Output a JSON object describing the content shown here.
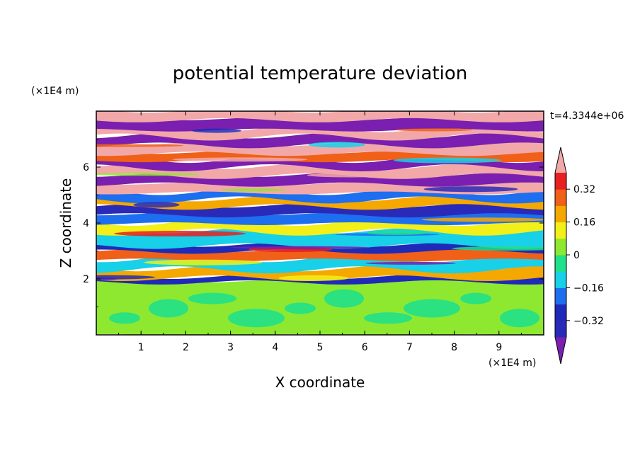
{
  "chart_data": {
    "type": "heatmap",
    "title": "potential temperature deviation",
    "xlabel": "X coordinate",
    "ylabel": "Z coordinate",
    "x_unit": "(×1E4 m)",
    "y_unit": "(×1E4 m)",
    "time_label": "t=4.3344e+06",
    "x_ticks": [
      "1",
      "2",
      "3",
      "4",
      "5",
      "6",
      "7",
      "8",
      "9"
    ],
    "y_ticks": [
      "2",
      "4",
      "6"
    ],
    "xlim": [
      0,
      10
    ],
    "ylim": [
      0,
      8
    ],
    "colorbar": {
      "tick_labels": [
        "0.32",
        "0.16",
        "0",
        "−0.16",
        "−0.32"
      ],
      "tick_values": [
        0.32,
        0.16,
        0,
        -0.16,
        -0.32
      ],
      "levels": [
        -0.4,
        -0.32,
        -0.24,
        -0.16,
        -0.08,
        0,
        0.08,
        0.16,
        0.24,
        0.32,
        0.4
      ],
      "colors": [
        "#7a1fb0",
        "#2a2ab8",
        "#1f2ab8",
        "#1e6ef0",
        "#18d0e8",
        "#20e08a",
        "#8ee830",
        "#f2f018",
        "#f4a800",
        "#f06018",
        "#e82020",
        "#f2a8a8"
      ],
      "extend": "both"
    },
    "bands": [
      {
        "z": [
          0.0,
          1.9
        ],
        "color": "#8ee830"
      },
      {
        "z": [
          1.9,
          2.05
        ],
        "color": "#1f2ab8"
      },
      {
        "z": [
          2.05,
          2.35
        ],
        "color": "#f4a800"
      },
      {
        "z": [
          2.35,
          2.7
        ],
        "color": "#18d0e8"
      },
      {
        "z": [
          2.7,
          3.0
        ],
        "color": "#f06018"
      },
      {
        "z": [
          3.0,
          3.2
        ],
        "color": "#1f2ab8"
      },
      {
        "z": [
          3.2,
          3.7
        ],
        "color": "#18d0e8"
      },
      {
        "z": [
          3.7,
          4.0
        ],
        "color": "#f2f018"
      },
      {
        "z": [
          4.0,
          4.3
        ],
        "color": "#1e6ef0"
      },
      {
        "z": [
          4.3,
          4.6
        ],
        "color": "#2a2ab8"
      },
      {
        "z": [
          4.6,
          4.85
        ],
        "color": "#f4a800"
      },
      {
        "z": [
          4.85,
          5.1
        ],
        "color": "#1e6ef0"
      },
      {
        "z": [
          5.1,
          5.4
        ],
        "color": "#f2a8a8"
      },
      {
        "z": [
          5.4,
          5.7
        ],
        "color": "#7a1fb0"
      },
      {
        "z": [
          5.7,
          6.0
        ],
        "color": "#f2a8a8"
      },
      {
        "z": [
          6.0,
          6.25
        ],
        "color": "#7a1fb0"
      },
      {
        "z": [
          6.25,
          6.5
        ],
        "color": "#f06018"
      },
      {
        "z": [
          6.5,
          6.8
        ],
        "color": "#f2a8a8"
      },
      {
        "z": [
          6.8,
          7.1
        ],
        "color": "#7a1fb0"
      },
      {
        "z": [
          7.1,
          7.35
        ],
        "color": "#f2a8a8"
      },
      {
        "z": [
          7.35,
          7.7
        ],
        "color": "#7a1fb0"
      },
      {
        "z": [
          7.7,
          8.0
        ],
        "color": "#f2a8a8"
      }
    ]
  }
}
